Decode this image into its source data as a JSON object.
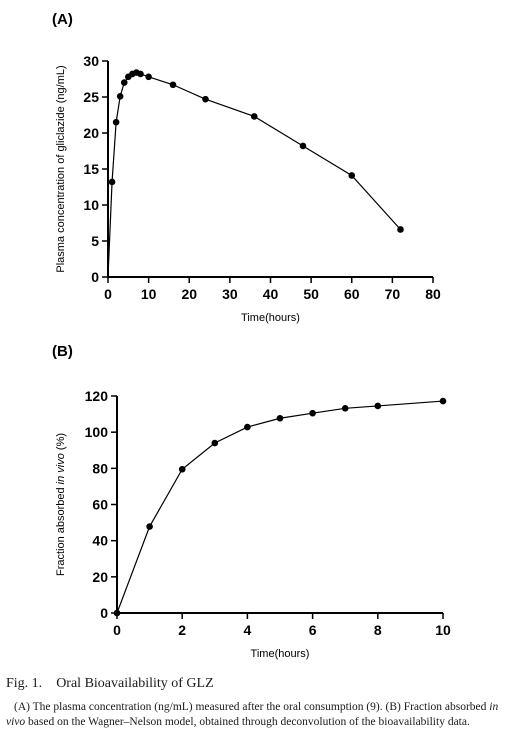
{
  "chart_data": [
    {
      "panel_label": "(A)",
      "type": "line",
      "xlabel": "Time(hours)",
      "ylabel": "Plasma concentration of gliclazide (ng/mL)",
      "xlim": [
        0,
        80
      ],
      "ylim": [
        0,
        30
      ],
      "xticks": [
        "0",
        "10",
        "20",
        "30",
        "40",
        "50",
        "60",
        "70",
        "80"
      ],
      "yticks": [
        "0",
        "5",
        "10",
        "15",
        "20",
        "25",
        "30"
      ],
      "grid": false,
      "series": [
        {
          "x": [
            1,
            2,
            3,
            4,
            5,
            6,
            7,
            8,
            10,
            16,
            24,
            36,
            48,
            60,
            72
          ],
          "y": [
            13.2,
            21.5,
            25.1,
            27.0,
            27.8,
            28.2,
            28.4,
            28.2,
            27.8,
            26.7,
            24.7,
            22.3,
            18.2,
            14.1,
            6.6
          ]
        }
      ]
    },
    {
      "panel_label": "(B)",
      "type": "line",
      "xlabel": "Time(hours)",
      "ylabel": "Fraction absorbed in vivo (%)",
      "xlim": [
        0,
        10
      ],
      "ylim": [
        0,
        120
      ],
      "xticks": [
        "0",
        "2",
        "4",
        "6",
        "8",
        "10"
      ],
      "yticks": [
        "0",
        "20",
        "40",
        "60",
        "80",
        "100",
        "120"
      ],
      "grid": false,
      "series": [
        {
          "x": [
            0,
            1,
            2,
            3,
            4,
            5,
            6,
            7,
            8,
            10
          ],
          "y": [
            0,
            47.8,
            79.5,
            94.0,
            102.8,
            107.7,
            110.5,
            113.2,
            114.5,
            117.2
          ]
        }
      ]
    }
  ],
  "caption": {
    "title_prefix": "Fig. 1.",
    "title_text": "Oral Bioavailability of GLZ",
    "body": "(A) The plasma concentration (ng/mL) measured after the oral consumption (9). (B) Fraction absorbed in vivo based on the Wagner–Nelson model, obtained through deconvolution of the bioavailability data."
  }
}
